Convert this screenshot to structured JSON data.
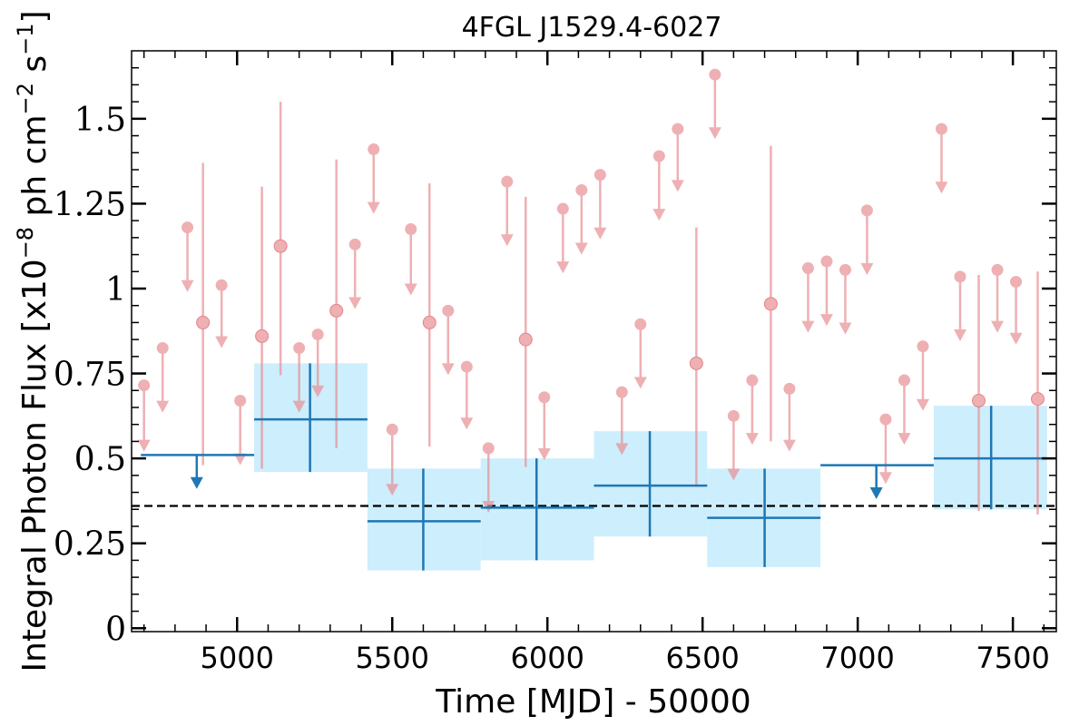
{
  "chart_data": {
    "type": "scatter",
    "title": "4FGL J1529.4-6027",
    "xlabel": "Time [MJD] - 50000",
    "ylabel": "Integral Photon Flux [x10",
    "ylabel_exp1": "−8",
    "ylabel_mid": " ph cm",
    "ylabel_exp2": "−2",
    "ylabel_mid2": " s",
    "ylabel_exp3": "−1",
    "ylabel_end": "]",
    "xlim": [
      4660,
      7640
    ],
    "ylim": [
      -0.01,
      1.7
    ],
    "x_ticks": [
      {
        "value": 5000,
        "label": "5000"
      },
      {
        "value": 5500,
        "label": "5500"
      },
      {
        "value": 6000,
        "label": "6000"
      },
      {
        "value": 6500,
        "label": "6500"
      },
      {
        "value": 7000,
        "label": "7000"
      },
      {
        "value": 7500,
        "label": "7500"
      }
    ],
    "y_ticks": [
      {
        "value": 0,
        "label": "0"
      },
      {
        "value": 0.25,
        "label": "0.25"
      },
      {
        "value": 0.5,
        "label": "0.5"
      },
      {
        "value": 0.75,
        "label": "0.75"
      },
      {
        "value": 1.0,
        "label": "1"
      },
      {
        "value": 1.25,
        "label": "1.25"
      },
      {
        "value": 1.5,
        "label": "1.5"
      }
    ],
    "reference_line": {
      "y": 0.36,
      "style": "dashed",
      "color": "#000000"
    },
    "colors": {
      "short_bins": "#e88f93",
      "long_bins": "#1f77b4",
      "long_bins_fill": "#cdeefc"
    },
    "short_bin_points": [
      {
        "x": 4700,
        "y": 0.715,
        "upper_limit": true,
        "lower": 0.52
      },
      {
        "x": 4760,
        "y": 0.825,
        "upper_limit": true,
        "lower": 0.635
      },
      {
        "x": 4840,
        "y": 1.18,
        "upper_limit": true,
        "lower": 0.99
      },
      {
        "x": 4890,
        "y": 0.9,
        "upper_limit": false,
        "err_low": 0.48,
        "err_high": 1.37
      },
      {
        "x": 4950,
        "y": 1.01,
        "upper_limit": true,
        "lower": 0.825
      },
      {
        "x": 5010,
        "y": 0.67,
        "upper_limit": true,
        "lower": 0.48
      },
      {
        "x": 5080,
        "y": 0.86,
        "upper_limit": false,
        "err_low": 0.47,
        "err_high": 1.3
      },
      {
        "x": 5140,
        "y": 1.125,
        "upper_limit": false,
        "err_low": 0.745,
        "err_high": 1.55
      },
      {
        "x": 5200,
        "y": 0.825,
        "upper_limit": true,
        "lower": 0.635
      },
      {
        "x": 5260,
        "y": 0.865,
        "upper_limit": true,
        "lower": 0.68
      },
      {
        "x": 5320,
        "y": 0.935,
        "upper_limit": false,
        "err_low": 0.53,
        "err_high": 1.38
      },
      {
        "x": 5380,
        "y": 1.13,
        "upper_limit": true,
        "lower": 0.94
      },
      {
        "x": 5440,
        "y": 1.41,
        "upper_limit": true,
        "lower": 1.22
      },
      {
        "x": 5500,
        "y": 0.585,
        "upper_limit": true,
        "lower": 0.39
      },
      {
        "x": 5560,
        "y": 1.175,
        "upper_limit": true,
        "lower": 0.98
      },
      {
        "x": 5620,
        "y": 0.9,
        "upper_limit": false,
        "err_low": 0.535,
        "err_high": 1.31
      },
      {
        "x": 5680,
        "y": 0.935,
        "upper_limit": true,
        "lower": 0.745
      },
      {
        "x": 5740,
        "y": 0.77,
        "upper_limit": true,
        "lower": 0.585
      },
      {
        "x": 5810,
        "y": 0.53,
        "upper_limit": true,
        "lower": 0.34
      },
      {
        "x": 5870,
        "y": 1.315,
        "upper_limit": true,
        "lower": 1.125
      },
      {
        "x": 5930,
        "y": 0.85,
        "upper_limit": false,
        "err_low": 0.475,
        "err_high": 1.27
      },
      {
        "x": 5990,
        "y": 0.68,
        "upper_limit": true,
        "lower": 0.495
      },
      {
        "x": 6050,
        "y": 1.235,
        "upper_limit": true,
        "lower": 1.045
      },
      {
        "x": 6110,
        "y": 1.29,
        "upper_limit": true,
        "lower": 1.1
      },
      {
        "x": 6170,
        "y": 1.335,
        "upper_limit": true,
        "lower": 1.145
      },
      {
        "x": 6240,
        "y": 0.695,
        "upper_limit": true,
        "lower": 0.51
      },
      {
        "x": 6300,
        "y": 0.895,
        "upper_limit": true,
        "lower": 0.705
      },
      {
        "x": 6360,
        "y": 1.39,
        "upper_limit": true,
        "lower": 1.2
      },
      {
        "x": 6420,
        "y": 1.47,
        "upper_limit": true,
        "lower": 1.285
      },
      {
        "x": 6480,
        "y": 0.78,
        "upper_limit": false,
        "err_low": 0.42,
        "err_high": 1.18
      },
      {
        "x": 6540,
        "y": 1.63,
        "upper_limit": true,
        "lower": 1.44
      },
      {
        "x": 6600,
        "y": 0.625,
        "upper_limit": true,
        "lower": 0.435
      },
      {
        "x": 6660,
        "y": 0.73,
        "upper_limit": true,
        "lower": 0.54
      },
      {
        "x": 6720,
        "y": 0.955,
        "upper_limit": false,
        "err_low": 0.55,
        "err_high": 1.42
      },
      {
        "x": 6780,
        "y": 0.705,
        "upper_limit": true,
        "lower": 0.52
      },
      {
        "x": 6840,
        "y": 1.06,
        "upper_limit": true,
        "lower": 0.87
      },
      {
        "x": 6900,
        "y": 1.08,
        "upper_limit": true,
        "lower": 0.89
      },
      {
        "x": 6960,
        "y": 1.055,
        "upper_limit": true,
        "lower": 0.865
      },
      {
        "x": 7030,
        "y": 1.23,
        "upper_limit": true,
        "lower": 1.04
      },
      {
        "x": 7090,
        "y": 0.615,
        "upper_limit": true,
        "lower": 0.425
      },
      {
        "x": 7150,
        "y": 0.73,
        "upper_limit": true,
        "lower": 0.54
      },
      {
        "x": 7210,
        "y": 0.83,
        "upper_limit": true,
        "lower": 0.64
      },
      {
        "x": 7270,
        "y": 1.47,
        "upper_limit": true,
        "lower": 1.28
      },
      {
        "x": 7330,
        "y": 1.035,
        "upper_limit": true,
        "lower": 0.845
      },
      {
        "x": 7390,
        "y": 0.67,
        "upper_limit": false,
        "err_low": 0.345,
        "err_high": 1.04
      },
      {
        "x": 7450,
        "y": 1.055,
        "upper_limit": true,
        "lower": 0.87
      },
      {
        "x": 7510,
        "y": 1.02,
        "upper_limit": true,
        "lower": 0.835
      },
      {
        "x": 7580,
        "y": 0.675,
        "upper_limit": false,
        "err_low": 0.335,
        "err_high": 1.05
      }
    ],
    "long_bins": [
      {
        "x_start": 4690,
        "x_end": 5055,
        "y": 0.51,
        "upper_limit": true,
        "arrow_x": 4870,
        "arrow_end": 0.41
      },
      {
        "x_start": 5055,
        "x_end": 5420,
        "y": 0.615,
        "upper_limit": false,
        "err_low": 0.46,
        "err_high": 0.78,
        "center": 5235
      },
      {
        "x_start": 5420,
        "x_end": 5785,
        "y": 0.315,
        "upper_limit": false,
        "err_low": 0.17,
        "err_high": 0.47,
        "center": 5600
      },
      {
        "x_start": 5785,
        "x_end": 6150,
        "y": 0.355,
        "upper_limit": false,
        "err_low": 0.2,
        "err_high": 0.5,
        "center": 5965
      },
      {
        "x_start": 6150,
        "x_end": 6515,
        "y": 0.42,
        "upper_limit": false,
        "err_low": 0.27,
        "err_high": 0.58,
        "center": 6330
      },
      {
        "x_start": 6515,
        "x_end": 6880,
        "y": 0.325,
        "upper_limit": false,
        "err_low": 0.18,
        "err_high": 0.47,
        "center": 6700
      },
      {
        "x_start": 6880,
        "x_end": 7245,
        "y": 0.48,
        "upper_limit": true,
        "arrow_x": 7060,
        "arrow_end": 0.38
      },
      {
        "x_start": 7245,
        "x_end": 7610,
        "y": 0.5,
        "upper_limit": false,
        "err_low": 0.35,
        "err_high": 0.655,
        "center": 7430
      }
    ]
  }
}
